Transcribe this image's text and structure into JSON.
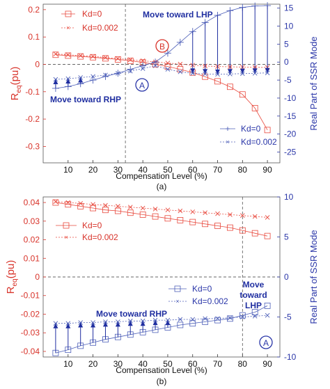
{
  "chart_data": [
    {
      "type": "line",
      "panel_label": "(a)",
      "xlabel": "Compensation Level (%)",
      "ylabel_left": "R_eq(pu)",
      "ylabel_left_main": "R",
      "ylabel_left_sub": "eq",
      "ylabel_left_tail": "(pu)",
      "ylabel_right": "Real Part of SSR Mode",
      "xlim": [
        0,
        95
      ],
      "ylim_left": [
        -0.36,
        0.22
      ],
      "ylim_right": [
        -28,
        16.1
      ],
      "x_ticks": [
        "10",
        "20",
        "30",
        "40",
        "50",
        "60",
        "70",
        "80",
        "90"
      ],
      "y_ticks_left": [
        "0.2",
        "0.1",
        "0",
        "-0.1",
        "-0.2",
        "-0.3"
      ],
      "y_ticks_right": [
        "15",
        "10",
        "5",
        "0",
        "-5",
        "-10",
        "-15",
        "-20",
        "-25"
      ],
      "x": [
        5,
        10,
        15,
        20,
        25,
        30,
        35,
        40,
        45,
        50,
        55,
        60,
        65,
        70,
        75,
        80,
        85,
        90
      ],
      "series": [
        {
          "name": "Kd=0",
          "axis": "left",
          "color": "#e8483c",
          "marker": "square",
          "values": [
            0.035,
            0.032,
            0.029,
            0.026,
            0.022,
            0.018,
            0.013,
            0.007,
            0.0,
            -0.008,
            -0.018,
            -0.03,
            -0.045,
            -0.062,
            -0.082,
            -0.11,
            -0.16,
            -0.24
          ]
        },
        {
          "name": "Kd=0.002",
          "axis": "left",
          "color": "#e8483c",
          "marker": "x",
          "values": [
            0.038,
            0.035,
            0.032,
            0.029,
            0.025,
            0.021,
            0.017,
            0.013,
            0.009,
            0.005,
            0.001,
            -0.003,
            -0.006,
            -0.008,
            -0.009,
            -0.01,
            -0.011,
            -0.011
          ]
        },
        {
          "name": "Kd=0",
          "axis": "right",
          "color": "#4d5fb8",
          "marker": "plus",
          "values": [
            -7.3,
            -6.8,
            -6.0,
            -5.0,
            -4.0,
            -3.1,
            -2.0,
            -1.0,
            0.0,
            2.5,
            5.5,
            8.5,
            11.0,
            13.0,
            14.3,
            15.2,
            15.6,
            15.7
          ]
        },
        {
          "name": "Kd=0.002",
          "axis": "right",
          "color": "#4d5fb8",
          "marker": "x",
          "values": [
            -4.8,
            -4.6,
            -4.3,
            -4.0,
            -3.6,
            -3.1,
            -2.5,
            -1.8,
            -1.0,
            -2.0,
            -2.7,
            -3.1,
            -3.3,
            -3.4,
            -3.3,
            -3.2,
            -3.1,
            -3.0
          ]
        }
      ],
      "legend_left": [
        "Kd=0",
        "Kd=0.002"
      ],
      "legend_right": [
        "Kd=0",
        "Kd=0.002"
      ],
      "annotations": {
        "move_lhp": "Move toward LHP",
        "move_rhp": "Move toward RHP",
        "marker_a": "A",
        "marker_b": "B"
      },
      "arrows_up_x": [
        5,
        10,
        15
      ],
      "arrows_down_x": [
        60,
        65,
        70,
        75,
        80,
        85,
        90
      ],
      "vline_x": 33
    },
    {
      "type": "line",
      "panel_label": "(b)",
      "xlabel": "Compensation Level (%)",
      "ylabel_left": "R_eq(pu)",
      "ylabel_left_main": "R",
      "ylabel_left_sub": "eq",
      "ylabel_left_tail": "(pu)",
      "ylabel_right": "Real Part of SSR Mode",
      "xlim": [
        0,
        95
      ],
      "ylim_left": [
        -0.043,
        0.043
      ],
      "ylim_right": [
        -10,
        10
      ],
      "x_ticks": [
        "10",
        "20",
        "30",
        "40",
        "50",
        "60",
        "70",
        "80",
        "90"
      ],
      "y_ticks_left": [
        "0.04",
        "0.03",
        "0.02",
        "0.01",
        "0",
        "-0.01",
        "-0.02",
        "-0.03",
        "-0.04"
      ],
      "y_ticks_right": [
        "10",
        "5",
        "0",
        "-5",
        "-10"
      ],
      "x": [
        5,
        10,
        15,
        20,
        25,
        30,
        35,
        40,
        45,
        50,
        55,
        60,
        65,
        70,
        75,
        80,
        85,
        90
      ],
      "series": [
        {
          "name": "Kd=0",
          "axis": "left",
          "color": "#e8483c",
          "marker": "square",
          "values": [
            0.04,
            0.039,
            0.038,
            0.037,
            0.036,
            0.0355,
            0.0345,
            0.0335,
            0.0325,
            0.0315,
            0.0305,
            0.0295,
            0.0285,
            0.0275,
            0.0265,
            0.025,
            0.0235,
            0.022
          ]
        },
        {
          "name": "Kd=0.002",
          "axis": "left",
          "color": "#e8483c",
          "marker": "x",
          "values": [
            0.0405,
            0.04,
            0.0395,
            0.039,
            0.0385,
            0.038,
            0.0375,
            0.037,
            0.0365,
            0.036,
            0.0355,
            0.035,
            0.0345,
            0.034,
            0.0335,
            0.033,
            0.0325,
            0.032
          ]
        },
        {
          "name": "Kd=0",
          "axis": "right",
          "color": "#4d5fb8",
          "marker": "square",
          "values": [
            -9.5,
            -9.1,
            -8.6,
            -8.2,
            -7.8,
            -7.5,
            -7.2,
            -6.9,
            -6.6,
            -6.3,
            -6.0,
            -5.8,
            -5.6,
            -5.4,
            -5.2,
            -4.8,
            -4.4,
            -3.6
          ]
        },
        {
          "name": "Kd=0.002",
          "axis": "right",
          "color": "#4d5fb8",
          "marker": "x",
          "values": [
            -5.8,
            -5.8,
            -5.7,
            -5.7,
            -5.6,
            -5.6,
            -5.5,
            -5.5,
            -5.4,
            -5.4,
            -5.3,
            -5.3,
            -5.2,
            -5.2,
            -5.1,
            -5.0,
            -4.9,
            -4.8
          ]
        }
      ],
      "legend_left": [
        "Kd=0",
        "Kd=0.002"
      ],
      "legend_right": [
        "Kd=0",
        "Kd=0.002"
      ],
      "annotations": {
        "move_rhp": "Move toward RHP",
        "move_lhp_1": "Move",
        "move_lhp_2": "toward",
        "move_lhp_3": "LHP",
        "marker_a": "A"
      },
      "arrows_up_x": [
        5,
        10,
        15,
        20,
        25,
        30,
        35,
        40,
        45,
        50
      ],
      "vline_x": 80
    }
  ]
}
